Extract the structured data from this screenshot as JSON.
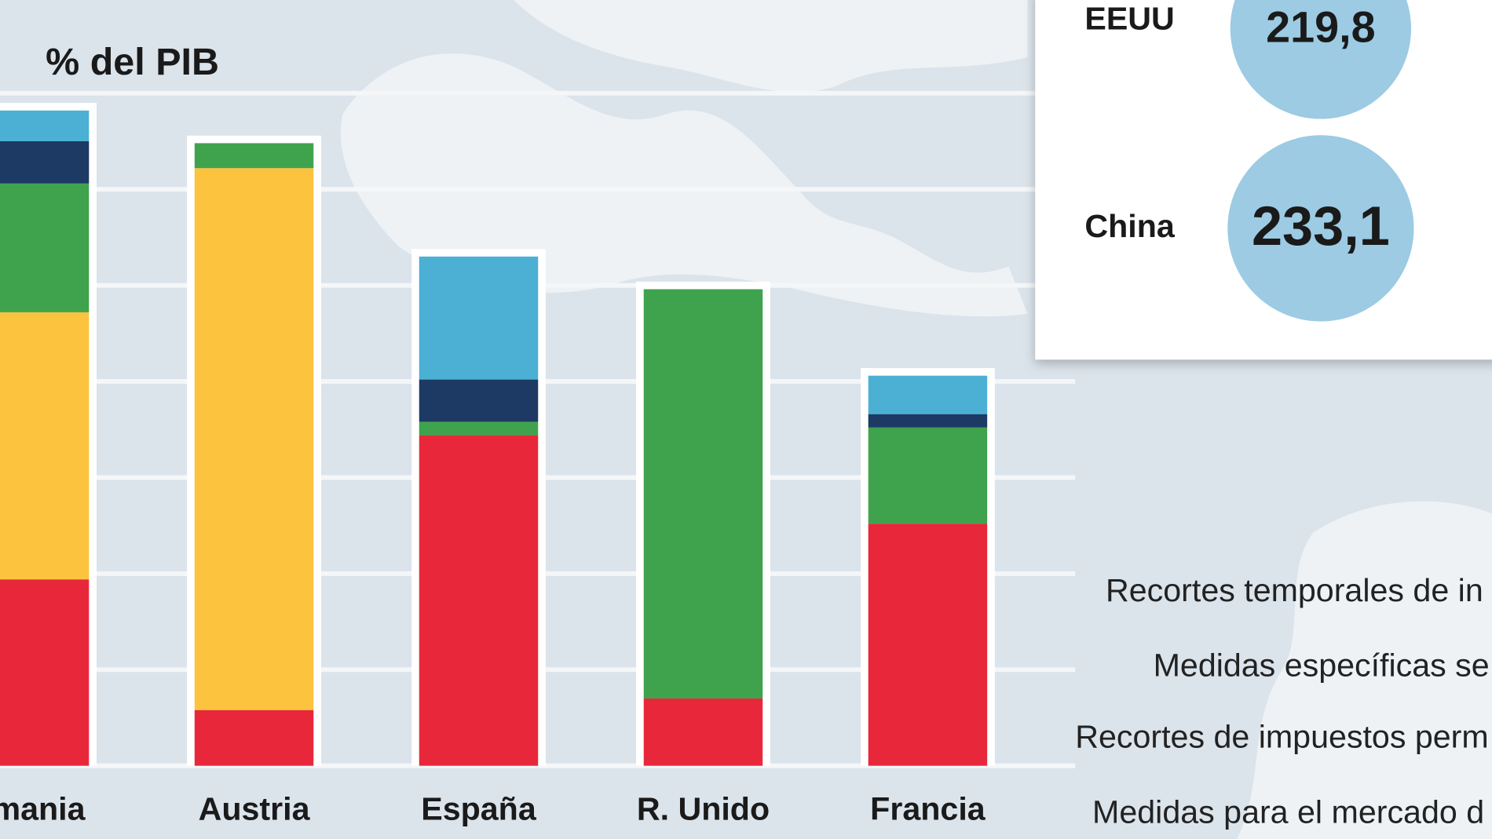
{
  "chart_data": {
    "type": "stacked-bar",
    "title": "% del PIB",
    "categories": [
      "emania",
      "Austria",
      "España",
      "R. Unido",
      "Francia"
    ],
    "series": [
      {
        "color": "#e8283a",
        "values": [
          9.7,
          2.9,
          17.2,
          3.5,
          12.6
        ]
      },
      {
        "color": "#fcc33e",
        "values": [
          13.9,
          28.2,
          0,
          0,
          0
        ]
      },
      {
        "color": "#3fa34d",
        "values": [
          6.7,
          1.3,
          0.7,
          21.3,
          5.0
        ]
      },
      {
        "color": "#1c3a63",
        "values": [
          2.2,
          0,
          2.2,
          0,
          0.7
        ]
      },
      {
        "color": "#4bb0d4",
        "values": [
          1.6,
          0,
          6.4,
          0,
          2.0
        ]
      }
    ],
    "ylim": [
      0,
      40
    ],
    "yticks": [
      0,
      5,
      10,
      15,
      20,
      25,
      30,
      35,
      40
    ],
    "grid": true,
    "bubbles": {
      "color": "#9ccbe3",
      "items": [
        {
          "name": "EEUU",
          "value": 219.8,
          "label": "219,8"
        },
        {
          "name": "China",
          "value": 233.1,
          "label": "233,1"
        }
      ]
    },
    "annotations": [
      "Recortes temporales de in",
      "Medidas específicas se",
      "Recortes de impuestos perm",
      "Medidas para el mercado d"
    ]
  }
}
